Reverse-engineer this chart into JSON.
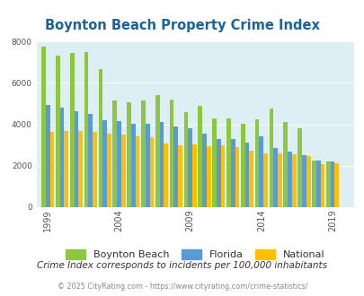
{
  "title": "Boynton Beach Property Crime Index",
  "title_color": "#1a6496",
  "years": [
    1999,
    2000,
    2001,
    2002,
    2003,
    2004,
    2005,
    2006,
    2007,
    2008,
    2009,
    2010,
    2011,
    2012,
    2013,
    2014,
    2015,
    2016,
    2017,
    2018,
    2019,
    2020
  ],
  "boynton_beach": [
    7750,
    7300,
    7450,
    7500,
    6650,
    5150,
    5080,
    5130,
    5420,
    5200,
    4580,
    4900,
    4280,
    4300,
    4030,
    4250,
    4750,
    4120,
    3790,
    2250,
    2220,
    0
  ],
  "florida": [
    4920,
    4800,
    4640,
    4500,
    4200,
    4150,
    4020,
    4010,
    4130,
    3900,
    3800,
    3560,
    3310,
    3280,
    3130,
    3430,
    2870,
    2680,
    2500,
    2240,
    2190,
    0
  ],
  "national": [
    3620,
    3670,
    3680,
    3620,
    3560,
    3500,
    3430,
    3370,
    3090,
    2970,
    3010,
    2950,
    2980,
    2880,
    2730,
    2610,
    2600,
    2550,
    2470,
    2090,
    2100,
    0
  ],
  "bar_colors": {
    "boynton_beach": "#8dc63f",
    "florida": "#5b9bd5",
    "national": "#ffc000"
  },
  "ylim": [
    0,
    8000
  ],
  "yticks": [
    0,
    2000,
    4000,
    6000,
    8000
  ],
  "xtick_positions": [
    0,
    5,
    10,
    15,
    20
  ],
  "xtick_labels": [
    "1999",
    "2004",
    "2009",
    "2014",
    "2019"
  ],
  "plot_bg_color": "#ddeef5",
  "fig_bg_color": "#ffffff",
  "legend_labels": [
    "Boynton Beach",
    "Florida",
    "National"
  ],
  "footnote": "Crime Index corresponds to incidents per 100,000 inhabitants",
  "copyright": "© 2025 CityRating.com - https://www.cityrating.com/crime-statistics/",
  "footnote_color": "#333333",
  "copyright_color": "#888888",
  "grid_color": "#ffffff"
}
